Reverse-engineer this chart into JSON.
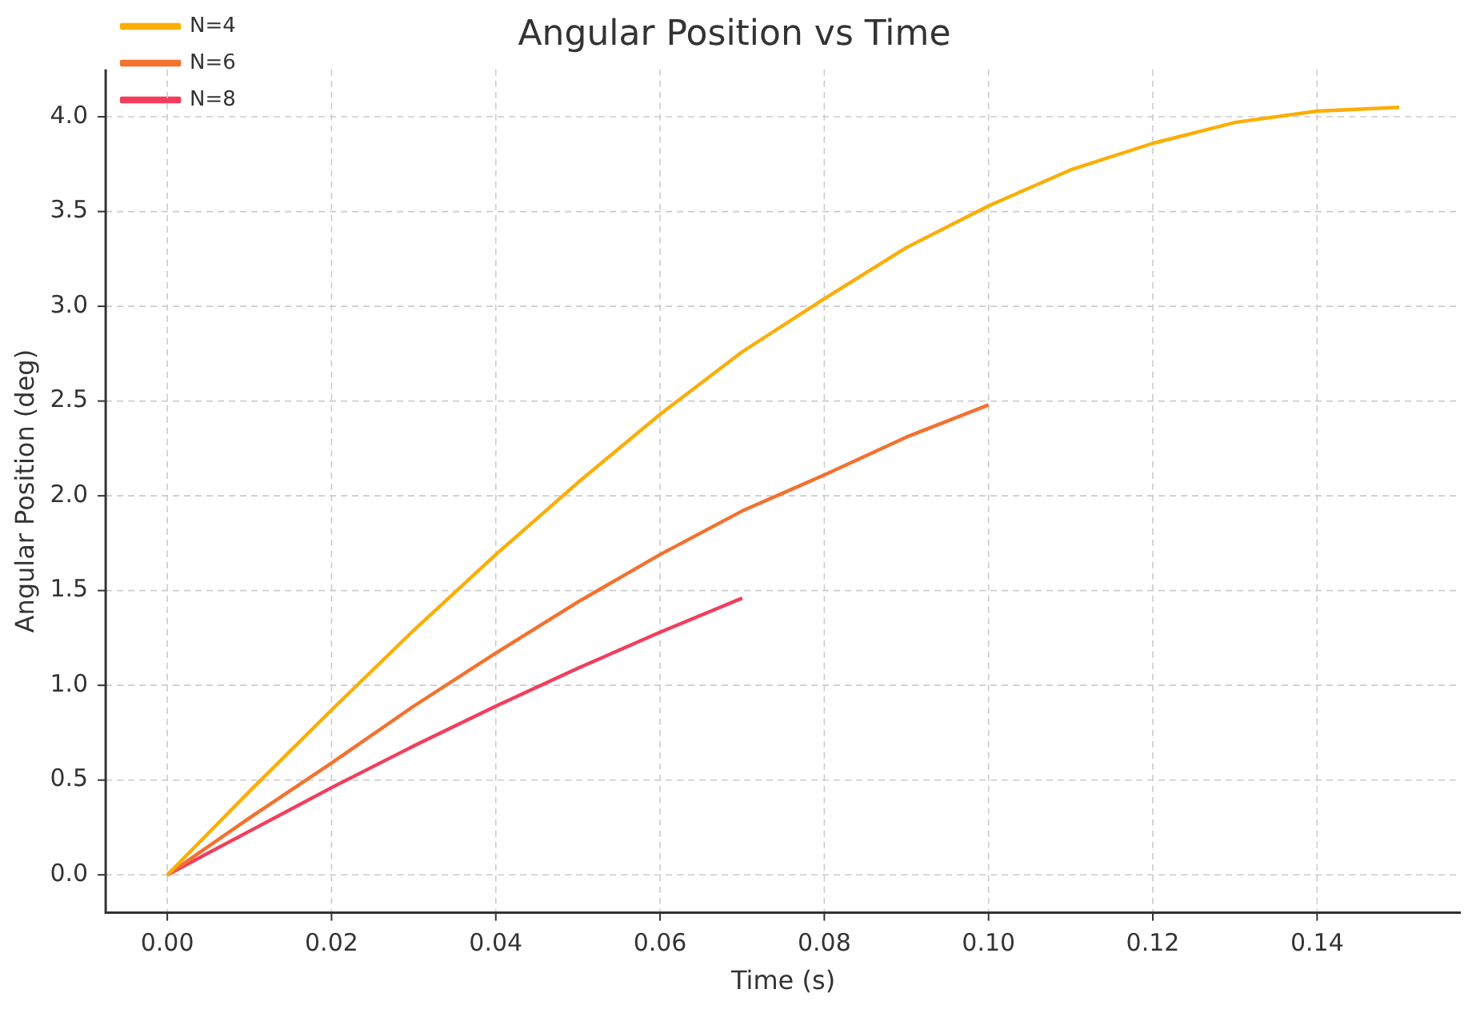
{
  "chart_data": {
    "type": "line",
    "title": "Angular Position vs Time",
    "xlabel": "Time (s)",
    "ylabel": "Angular Position (deg)",
    "x": [
      0,
      0.01,
      0.02,
      0.03,
      0.04,
      0.05,
      0.06,
      0.07,
      0.08,
      0.09,
      0.1,
      0.11,
      0.12,
      0.13,
      0.14,
      0.15
    ],
    "series": [
      {
        "name": "N=4",
        "color": "#fbae06",
        "values": [
          0,
          0.44,
          0.87,
          1.29,
          1.69,
          2.07,
          2.43,
          2.76,
          3.04,
          3.31,
          3.53,
          3.72,
          3.86,
          3.97,
          4.03,
          4.05
        ]
      },
      {
        "name": "N=6",
        "color": "#f4712e",
        "values": [
          0,
          0.3,
          0.59,
          0.89,
          1.17,
          1.44,
          1.69,
          1.92,
          2.11,
          2.31,
          2.48,
          null,
          null,
          null,
          null,
          null
        ]
      },
      {
        "name": "N=8",
        "color": "#f23e5c",
        "values": [
          0,
          0.23,
          0.46,
          0.68,
          0.89,
          1.09,
          1.28,
          1.46,
          null,
          null,
          null,
          null,
          null,
          null,
          null,
          null
        ]
      }
    ],
    "xlim": [
      -0.0075,
      0.1575
    ],
    "xticks": [
      {
        "value": 0,
        "label": "0.00"
      },
      {
        "value": 0.02,
        "label": "0.02"
      },
      {
        "value": 0.04,
        "label": "0.04"
      },
      {
        "value": 0.06,
        "label": "0.06"
      },
      {
        "value": 0.08,
        "label": "0.08"
      },
      {
        "value": 0.1,
        "label": "0.10"
      },
      {
        "value": 0.12,
        "label": "0.12"
      },
      {
        "value": 0.14,
        "label": "0.14"
      }
    ],
    "ylim": [
      -0.2,
      4.25
    ],
    "yticks": [
      {
        "value": 0,
        "label": "0.0"
      },
      {
        "value": 0.5,
        "label": "0.5"
      },
      {
        "value": 1,
        "label": "1.0"
      },
      {
        "value": 1.5,
        "label": "1.5"
      },
      {
        "value": 2,
        "label": "2.0"
      },
      {
        "value": 2.5,
        "label": "2.5"
      },
      {
        "value": 3,
        "label": "3.0"
      },
      {
        "value": 3.5,
        "label": "3.5"
      },
      {
        "value": 4,
        "label": "4.0"
      }
    ],
    "grid": true,
    "legend": "top left",
    "marker": "none",
    "line_style": "solid"
  }
}
